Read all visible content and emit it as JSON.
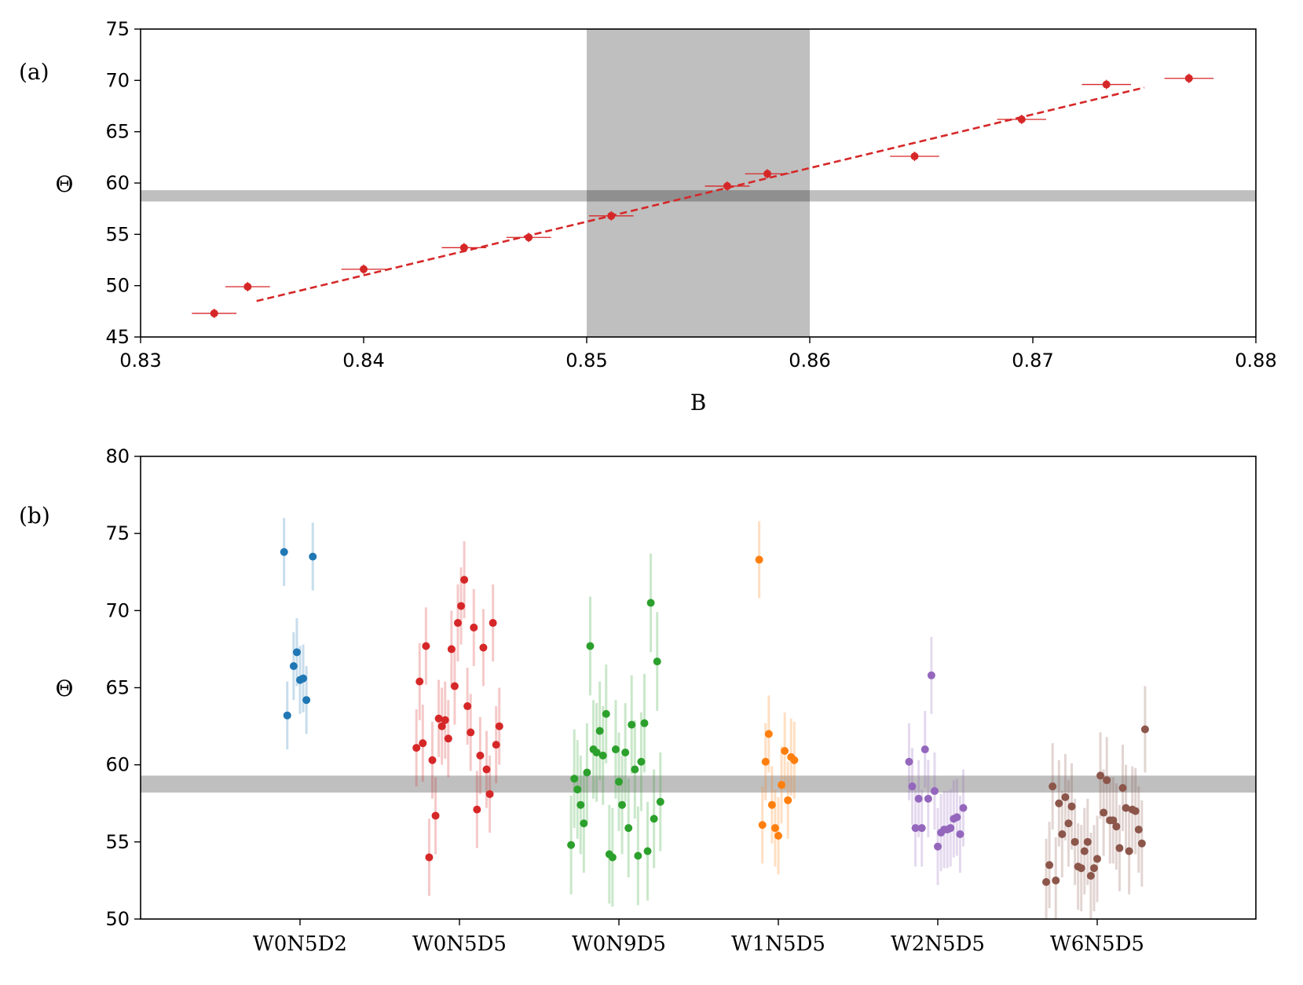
{
  "figure": {
    "panel_a_label": "(a)",
    "panel_b_label": "(b)"
  },
  "chart_data": [
    {
      "type": "scatter",
      "panel": "(a)",
      "xlabel": "B",
      "ylabel": "Θ",
      "xlim": [
        0.83,
        0.88
      ],
      "ylim": [
        45,
        75
      ],
      "xticks": [
        0.83,
        0.84,
        0.85,
        0.86,
        0.87,
        0.88
      ],
      "xtick_labels": [
        "0.83",
        "0.84",
        "0.85",
        "0.86",
        "0.87",
        "0.88"
      ],
      "yticks": [
        45,
        50,
        55,
        60,
        65,
        70,
        75
      ],
      "ytick_labels": [
        "45",
        "50",
        "55",
        "60",
        "65",
        "70",
        "75"
      ],
      "shaded_vertical_band": [
        0.85,
        0.86
      ],
      "shaded_horizontal_band": [
        58.2,
        59.3
      ],
      "fit_line": {
        "x": [
          0.8352,
          0.875
        ],
        "y": [
          48.5,
          69.3
        ],
        "color": "#d62728",
        "style": "dashed"
      },
      "points": [
        {
          "x": 0.8333,
          "y": 47.3,
          "xerr": 0.001
        },
        {
          "x": 0.8348,
          "y": 49.9,
          "xerr": 0.001
        },
        {
          "x": 0.84,
          "y": 51.6,
          "xerr": 0.001
        },
        {
          "x": 0.8445,
          "y": 53.7,
          "xerr": 0.001
        },
        {
          "x": 0.8474,
          "y": 54.7,
          "xerr": 0.001
        },
        {
          "x": 0.8511,
          "y": 56.8,
          "xerr": 0.001
        },
        {
          "x": 0.8563,
          "y": 59.7,
          "xerr": 0.001
        },
        {
          "x": 0.8581,
          "y": 60.9,
          "xerr": 0.001
        },
        {
          "x": 0.8647,
          "y": 62.6,
          "xerr": 0.0011
        },
        {
          "x": 0.8695,
          "y": 66.2,
          "xerr": 0.0011
        },
        {
          "x": 0.8733,
          "y": 69.6,
          "xerr": 0.0011
        },
        {
          "x": 0.877,
          "y": 70.2,
          "xerr": 0.0011
        }
      ],
      "color": "#d62728"
    },
    {
      "type": "scatter",
      "panel": "(b)",
      "ylabel": "Θ",
      "ylim": [
        50,
        80
      ],
      "yticks": [
        50,
        55,
        60,
        65,
        70,
        75,
        80
      ],
      "ytick_labels": [
        "50",
        "55",
        "60",
        "65",
        "70",
        "75",
        "80"
      ],
      "categories": [
        "W0N5D2",
        "W0N5D5",
        "W0N9D5",
        "W1N5D5",
        "W2N5D5",
        "W6N5D5"
      ],
      "shaded_horizontal_band": [
        58.2,
        59.3
      ],
      "series": [
        {
          "name": "W0N5D2",
          "color": "#1f77b4",
          "err": 2.2,
          "points": [
            [
              -0.1,
              73.8
            ],
            [
              -0.08,
              63.2
            ],
            [
              -0.04,
              66.4
            ],
            [
              -0.02,
              67.3
            ],
            [
              0.0,
              65.5
            ],
            [
              0.02,
              65.6
            ],
            [
              0.04,
              64.2
            ],
            [
              0.08,
              73.5
            ]
          ]
        },
        {
          "name": "W0N5D5",
          "color": "#d62728",
          "err": 2.5,
          "points": [
            [
              -0.27,
              61.1
            ],
            [
              -0.25,
              65.4
            ],
            [
              -0.23,
              61.4
            ],
            [
              -0.21,
              67.7
            ],
            [
              -0.19,
              54.0
            ],
            [
              -0.17,
              60.3
            ],
            [
              -0.15,
              56.7
            ],
            [
              -0.13,
              63.0
            ],
            [
              -0.11,
              62.5
            ],
            [
              -0.09,
              62.9
            ],
            [
              -0.07,
              61.7
            ],
            [
              -0.05,
              67.5
            ],
            [
              -0.03,
              65.1
            ],
            [
              -0.01,
              69.2
            ],
            [
              0.01,
              70.3
            ],
            [
              0.03,
              72.0
            ],
            [
              0.05,
              63.8
            ],
            [
              0.07,
              62.1
            ],
            [
              0.09,
              68.9
            ],
            [
              0.11,
              57.1
            ],
            [
              0.13,
              60.6
            ],
            [
              0.15,
              67.6
            ],
            [
              0.17,
              59.7
            ],
            [
              0.19,
              58.1
            ],
            [
              0.21,
              69.2
            ],
            [
              0.23,
              61.3
            ],
            [
              0.25,
              62.5
            ]
          ]
        },
        {
          "name": "W0N9D5",
          "color": "#2ca02c",
          "err": 3.2,
          "points": [
            [
              -0.3,
              54.8
            ],
            [
              -0.28,
              59.1
            ],
            [
              -0.26,
              58.4
            ],
            [
              -0.24,
              57.4
            ],
            [
              -0.22,
              56.2
            ],
            [
              -0.2,
              59.5
            ],
            [
              -0.18,
              67.7
            ],
            [
              -0.16,
              61.0
            ],
            [
              -0.14,
              60.8
            ],
            [
              -0.12,
              62.2
            ],
            [
              -0.1,
              60.6
            ],
            [
              -0.08,
              63.3
            ],
            [
              -0.06,
              54.2
            ],
            [
              -0.04,
              54.0
            ],
            [
              -0.02,
              61.0
            ],
            [
              0.0,
              58.9
            ],
            [
              0.02,
              57.4
            ],
            [
              0.04,
              60.8
            ],
            [
              0.06,
              55.9
            ],
            [
              0.08,
              62.6
            ],
            [
              0.1,
              59.7
            ],
            [
              0.12,
              54.1
            ],
            [
              0.14,
              60.2
            ],
            [
              0.16,
              62.7
            ],
            [
              0.18,
              54.4
            ],
            [
              0.2,
              70.5
            ],
            [
              0.22,
              56.5
            ],
            [
              0.24,
              66.7
            ],
            [
              0.26,
              57.6
            ]
          ]
        },
        {
          "name": "W1N5D5",
          "color": "#ff7f0e",
          "err": 2.5,
          "points": [
            [
              -0.12,
              73.3
            ],
            [
              -0.1,
              56.1
            ],
            [
              -0.08,
              60.2
            ],
            [
              -0.06,
              62.0
            ],
            [
              -0.04,
              57.4
            ],
            [
              -0.02,
              55.9
            ],
            [
              0.0,
              55.4
            ],
            [
              0.02,
              58.7
            ],
            [
              0.04,
              60.9
            ],
            [
              0.06,
              57.7
            ],
            [
              0.08,
              60.5
            ],
            [
              0.1,
              60.3
            ]
          ]
        },
        {
          "name": "W2N5D5",
          "color": "#9467bd",
          "err": 2.5,
          "points": [
            [
              -0.18,
              60.2
            ],
            [
              -0.16,
              58.6
            ],
            [
              -0.14,
              55.9
            ],
            [
              -0.12,
              57.8
            ],
            [
              -0.1,
              55.9
            ],
            [
              -0.08,
              61.0
            ],
            [
              -0.06,
              57.8
            ],
            [
              -0.04,
              65.8
            ],
            [
              -0.02,
              58.3
            ],
            [
              0.0,
              54.7
            ],
            [
              0.02,
              55.6
            ],
            [
              0.04,
              55.8
            ],
            [
              0.06,
              55.8
            ],
            [
              0.08,
              55.9
            ],
            [
              0.1,
              56.5
            ],
            [
              0.12,
              56.6
            ],
            [
              0.14,
              55.5
            ],
            [
              0.16,
              57.2
            ]
          ]
        },
        {
          "name": "W6N5D5",
          "color": "#8c564b",
          "err": 2.8,
          "points": [
            [
              -0.32,
              52.4
            ],
            [
              -0.3,
              53.5
            ],
            [
              -0.28,
              58.6
            ],
            [
              -0.26,
              52.5
            ],
            [
              -0.24,
              57.5
            ],
            [
              -0.22,
              55.5
            ],
            [
              -0.2,
              57.9
            ],
            [
              -0.18,
              56.2
            ],
            [
              -0.16,
              57.3
            ],
            [
              -0.14,
              55.0
            ],
            [
              -0.12,
              53.4
            ],
            [
              -0.1,
              53.3
            ],
            [
              -0.08,
              54.4
            ],
            [
              -0.06,
              55.0
            ],
            [
              -0.04,
              52.8
            ],
            [
              -0.02,
              53.3
            ],
            [
              0.0,
              53.9
            ],
            [
              0.02,
              59.3
            ],
            [
              0.04,
              56.9
            ],
            [
              0.06,
              59.0
            ],
            [
              0.08,
              56.4
            ],
            [
              0.1,
              56.4
            ],
            [
              0.12,
              56.0
            ],
            [
              0.14,
              54.6
            ],
            [
              0.16,
              58.5
            ],
            [
              0.18,
              57.2
            ],
            [
              0.2,
              54.4
            ],
            [
              0.22,
              57.1
            ],
            [
              0.24,
              57.0
            ],
            [
              0.26,
              55.8
            ],
            [
              0.28,
              54.9
            ],
            [
              0.3,
              62.3
            ]
          ]
        }
      ]
    }
  ]
}
